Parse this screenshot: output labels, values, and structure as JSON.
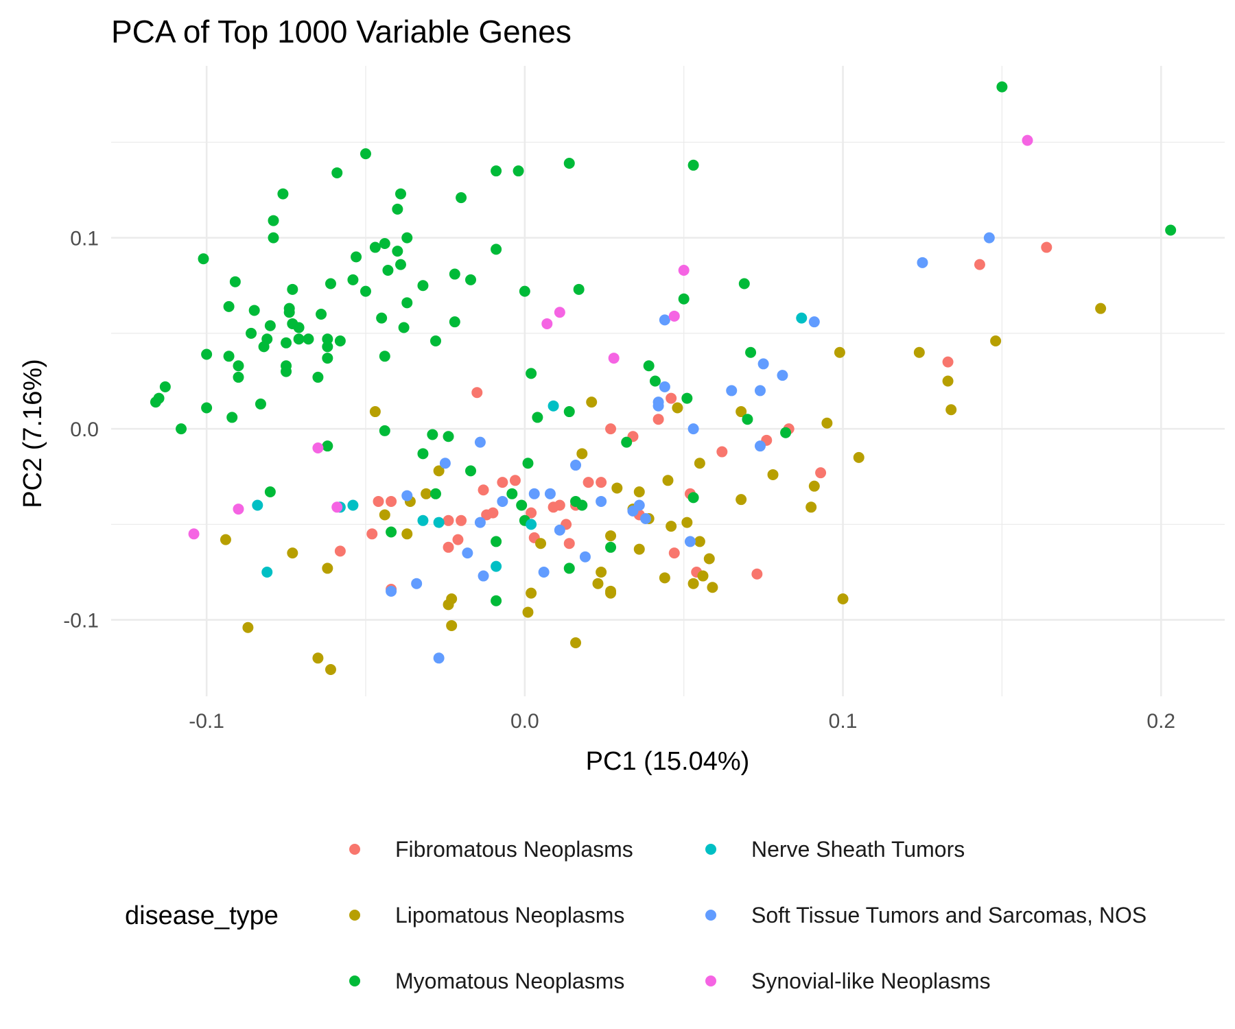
{
  "chart_data": {
    "type": "scatter",
    "title": "PCA of Top 1000 Variable Genes",
    "xlabel": "PC1 (15.04%)",
    "ylabel": "PC2 (7.16%)",
    "xlim": [
      -0.13,
      0.22
    ],
    "ylim": [
      -0.14,
      0.19
    ],
    "x_ticks": [
      -0.1,
      0.0,
      0.1,
      0.2
    ],
    "x_tick_labels": [
      "-0.1",
      "0.0",
      "0.1",
      "0.2"
    ],
    "y_ticks": [
      -0.1,
      0.0,
      0.1
    ],
    "y_tick_labels": [
      "-0.1",
      "0.0",
      "0.1"
    ],
    "grid": true,
    "legend": {
      "title": "disease_type",
      "position": "bottom"
    },
    "series": [
      {
        "name": "Fibromatous Neoplasms",
        "color": "#F8766D",
        "points": [
          [
            -0.015,
            0.019
          ],
          [
            0.164,
            0.095
          ],
          [
            0.143,
            0.086
          ],
          [
            0.133,
            0.035
          ],
          [
            0.027,
            0.0
          ],
          [
            0.034,
            -0.004
          ],
          [
            0.042,
            0.005
          ],
          [
            0.046,
            0.016
          ],
          [
            0.062,
            -0.012
          ],
          [
            0.076,
            -0.006
          ],
          [
            0.083,
            0.0
          ],
          [
            0.093,
            -0.023
          ],
          [
            -0.007,
            -0.028
          ],
          [
            -0.003,
            -0.027
          ],
          [
            -0.013,
            -0.032
          ],
          [
            -0.046,
            -0.038
          ],
          [
            -0.042,
            -0.038
          ],
          [
            -0.012,
            -0.045
          ],
          [
            -0.01,
            -0.044
          ],
          [
            0.002,
            -0.044
          ],
          [
            0.009,
            -0.041
          ],
          [
            0.011,
            -0.04
          ],
          [
            0.016,
            -0.04
          ],
          [
            0.02,
            -0.028
          ],
          [
            0.024,
            -0.028
          ],
          [
            0.013,
            -0.05
          ],
          [
            0.003,
            -0.057
          ],
          [
            0.014,
            -0.06
          ],
          [
            -0.024,
            -0.048
          ],
          [
            -0.02,
            -0.048
          ],
          [
            -0.024,
            -0.062
          ],
          [
            -0.021,
            -0.058
          ],
          [
            -0.048,
            -0.055
          ],
          [
            -0.058,
            -0.064
          ],
          [
            -0.042,
            -0.084
          ],
          [
            0.036,
            -0.045
          ],
          [
            0.047,
            -0.065
          ],
          [
            0.052,
            -0.034
          ],
          [
            0.054,
            -0.075
          ],
          [
            0.073,
            -0.076
          ]
        ]
      },
      {
        "name": "Lipomatous Neoplasms",
        "color": "#B79F00",
        "points": [
          [
            0.181,
            0.063
          ],
          [
            0.148,
            0.046
          ],
          [
            0.124,
            0.04
          ],
          [
            0.133,
            0.025
          ],
          [
            0.134,
            0.01
          ],
          [
            0.099,
            0.04
          ],
          [
            0.095,
            0.003
          ],
          [
            0.105,
            -0.015
          ],
          [
            0.068,
            0.009
          ],
          [
            0.048,
            0.011
          ],
          [
            0.021,
            0.014
          ],
          [
            0.018,
            -0.013
          ],
          [
            -0.047,
            0.009
          ],
          [
            -0.027,
            -0.022
          ],
          [
            0.045,
            -0.027
          ],
          [
            0.055,
            -0.018
          ],
          [
            0.078,
            -0.024
          ],
          [
            0.091,
            -0.03
          ],
          [
            0.09,
            -0.041
          ],
          [
            0.068,
            -0.037
          ],
          [
            0.029,
            -0.031
          ],
          [
            0.036,
            -0.033
          ],
          [
            0.039,
            -0.047
          ],
          [
            0.046,
            -0.051
          ],
          [
            0.051,
            -0.049
          ],
          [
            0.055,
            -0.059
          ],
          [
            0.058,
            -0.068
          ],
          [
            0.056,
            -0.077
          ],
          [
            0.053,
            -0.081
          ],
          [
            0.059,
            -0.083
          ],
          [
            0.044,
            -0.078
          ],
          [
            0.024,
            -0.075
          ],
          [
            0.023,
            -0.081
          ],
          [
            0.027,
            -0.085
          ],
          [
            0.027,
            -0.086
          ],
          [
            0.036,
            -0.063
          ],
          [
            0.027,
            -0.056
          ],
          [
            0.034,
            -0.042
          ],
          [
            0.005,
            -0.06
          ],
          [
            0.002,
            -0.086
          ],
          [
            0.001,
            -0.096
          ],
          [
            0.016,
            -0.112
          ],
          [
            0.1,
            -0.089
          ],
          [
            -0.031,
            -0.034
          ],
          [
            -0.036,
            -0.038
          ],
          [
            -0.044,
            -0.045
          ],
          [
            -0.037,
            -0.055
          ],
          [
            -0.073,
            -0.065
          ],
          [
            -0.094,
            -0.058
          ],
          [
            -0.062,
            -0.073
          ],
          [
            -0.087,
            -0.104
          ],
          [
            -0.065,
            -0.12
          ],
          [
            -0.061,
            -0.126
          ],
          [
            -0.023,
            -0.089
          ],
          [
            -0.024,
            -0.092
          ],
          [
            -0.023,
            -0.103
          ]
        ]
      },
      {
        "name": "Myomatous Neoplasms",
        "color": "#00BA38",
        "points": [
          [
            0.15,
            0.179
          ],
          [
            0.203,
            0.104
          ],
          [
            0.053,
            0.138
          ],
          [
            0.014,
            0.139
          ],
          [
            -0.009,
            0.135
          ],
          [
            -0.002,
            0.135
          ],
          [
            -0.05,
            0.144
          ],
          [
            -0.059,
            0.134
          ],
          [
            -0.076,
            0.123
          ],
          [
            -0.039,
            0.123
          ],
          [
            -0.02,
            0.121
          ],
          [
            -0.079,
            0.109
          ],
          [
            -0.04,
            0.115
          ],
          [
            -0.079,
            0.1
          ],
          [
            -0.037,
            0.1
          ],
          [
            -0.044,
            0.097
          ],
          [
            -0.047,
            0.095
          ],
          [
            -0.04,
            0.093
          ],
          [
            -0.053,
            0.09
          ],
          [
            -0.101,
            0.089
          ],
          [
            -0.009,
            0.094
          ],
          [
            -0.039,
            0.086
          ],
          [
            -0.043,
            0.083
          ],
          [
            -0.022,
            0.081
          ],
          [
            -0.017,
            0.078
          ],
          [
            -0.091,
            0.077
          ],
          [
            -0.054,
            0.078
          ],
          [
            -0.061,
            0.076
          ],
          [
            -0.032,
            0.075
          ],
          [
            -0.073,
            0.073
          ],
          [
            -0.05,
            0.072
          ],
          [
            0.0,
            0.072
          ],
          [
            0.017,
            0.073
          ],
          [
            0.069,
            0.076
          ],
          [
            0.05,
            0.068
          ],
          [
            -0.037,
            0.066
          ],
          [
            -0.093,
            0.064
          ],
          [
            -0.085,
            0.062
          ],
          [
            -0.074,
            0.061
          ],
          [
            -0.074,
            0.063
          ],
          [
            -0.064,
            0.06
          ],
          [
            -0.045,
            0.058
          ],
          [
            -0.08,
            0.054
          ],
          [
            -0.073,
            0.055
          ],
          [
            -0.071,
            0.053
          ],
          [
            -0.038,
            0.053
          ],
          [
            -0.022,
            0.056
          ],
          [
            -0.086,
            0.05
          ],
          [
            -0.081,
            0.047
          ],
          [
            -0.071,
            0.047
          ],
          [
            -0.068,
            0.047
          ],
          [
            -0.062,
            0.047
          ],
          [
            -0.058,
            0.046
          ],
          [
            -0.062,
            0.043
          ],
          [
            -0.075,
            0.045
          ],
          [
            -0.028,
            0.046
          ],
          [
            -0.082,
            0.043
          ],
          [
            -0.093,
            0.038
          ],
          [
            -0.1,
            0.039
          ],
          [
            -0.062,
            0.037
          ],
          [
            -0.044,
            0.038
          ],
          [
            -0.09,
            0.033
          ],
          [
            -0.075,
            0.033
          ],
          [
            -0.075,
            0.03
          ],
          [
            -0.09,
            0.027
          ],
          [
            -0.065,
            0.027
          ],
          [
            -0.113,
            0.022
          ],
          [
            -0.115,
            0.016
          ],
          [
            -0.116,
            0.014
          ],
          [
            -0.083,
            0.013
          ],
          [
            -0.1,
            0.011
          ],
          [
            -0.092,
            0.006
          ],
          [
            -0.108,
            0.0
          ],
          [
            -0.044,
            -0.001
          ],
          [
            -0.029,
            -0.003
          ],
          [
            -0.024,
            -0.004
          ],
          [
            0.002,
            0.029
          ],
          [
            0.039,
            0.033
          ],
          [
            0.041,
            0.025
          ],
          [
            0.051,
            0.016
          ],
          [
            0.071,
            0.04
          ],
          [
            0.07,
            0.005
          ],
          [
            0.082,
            -0.002
          ],
          [
            0.032,
            -0.007
          ],
          [
            0.004,
            0.006
          ],
          [
            0.014,
            0.009
          ],
          [
            -0.062,
            -0.009
          ],
          [
            -0.032,
            -0.013
          ],
          [
            -0.017,
            -0.022
          ],
          [
            0.001,
            -0.018
          ],
          [
            -0.028,
            -0.034
          ],
          [
            -0.004,
            -0.034
          ],
          [
            -0.001,
            -0.04
          ],
          [
            0.016,
            -0.038
          ],
          [
            0.018,
            -0.04
          ],
          [
            0.053,
            -0.036
          ],
          [
            -0.08,
            -0.033
          ],
          [
            -0.042,
            -0.054
          ],
          [
            0.0,
            -0.048
          ],
          [
            -0.009,
            -0.059
          ],
          [
            0.027,
            -0.062
          ],
          [
            0.014,
            -0.073
          ],
          [
            -0.009,
            -0.09
          ]
        ]
      },
      {
        "name": "Nerve Sheath Tumors",
        "color": "#00BFC4",
        "points": [
          [
            0.087,
            0.058
          ],
          [
            0.009,
            0.012
          ],
          [
            -0.084,
            -0.04
          ],
          [
            -0.054,
            -0.04
          ],
          [
            -0.032,
            -0.048
          ],
          [
            -0.027,
            -0.049
          ],
          [
            0.002,
            -0.05
          ],
          [
            -0.009,
            -0.072
          ],
          [
            -0.081,
            -0.075
          ],
          [
            -0.058,
            -0.041
          ]
        ]
      },
      {
        "name": "Soft Tissue Tumors and Sarcomas, NOS",
        "color": "#619CFF",
        "points": [
          [
            0.146,
            0.1
          ],
          [
            0.125,
            0.087
          ],
          [
            0.091,
            0.056
          ],
          [
            0.044,
            0.057
          ],
          [
            0.081,
            0.028
          ],
          [
            0.075,
            0.034
          ],
          [
            0.065,
            0.02
          ],
          [
            0.074,
            0.02
          ],
          [
            0.044,
            0.022
          ],
          [
            0.042,
            0.014
          ],
          [
            0.042,
            0.012
          ],
          [
            0.053,
            0.0
          ],
          [
            0.074,
            -0.009
          ],
          [
            -0.014,
            -0.007
          ],
          [
            -0.025,
            -0.018
          ],
          [
            0.016,
            -0.019
          ],
          [
            -0.037,
            -0.035
          ],
          [
            -0.007,
            -0.038
          ],
          [
            0.003,
            -0.034
          ],
          [
            0.008,
            -0.034
          ],
          [
            0.024,
            -0.038
          ],
          [
            0.036,
            -0.04
          ],
          [
            0.034,
            -0.043
          ],
          [
            0.038,
            -0.047
          ],
          [
            -0.014,
            -0.049
          ],
          [
            0.011,
            -0.053
          ],
          [
            -0.018,
            -0.065
          ],
          [
            0.019,
            -0.067
          ],
          [
            0.052,
            -0.059
          ],
          [
            -0.013,
            -0.077
          ],
          [
            0.006,
            -0.075
          ],
          [
            -0.034,
            -0.081
          ],
          [
            -0.042,
            -0.085
          ],
          [
            -0.027,
            -0.12
          ]
        ]
      },
      {
        "name": "Synovial-like Neoplasms",
        "color": "#F564E3",
        "points": [
          [
            0.158,
            0.151
          ],
          [
            0.05,
            0.083
          ],
          [
            0.011,
            0.061
          ],
          [
            0.047,
            0.059
          ],
          [
            0.007,
            0.055
          ],
          [
            0.028,
            0.037
          ],
          [
            -0.065,
            -0.01
          ],
          [
            -0.059,
            -0.041
          ],
          [
            -0.09,
            -0.042
          ],
          [
            -0.104,
            -0.055
          ]
        ]
      }
    ]
  }
}
